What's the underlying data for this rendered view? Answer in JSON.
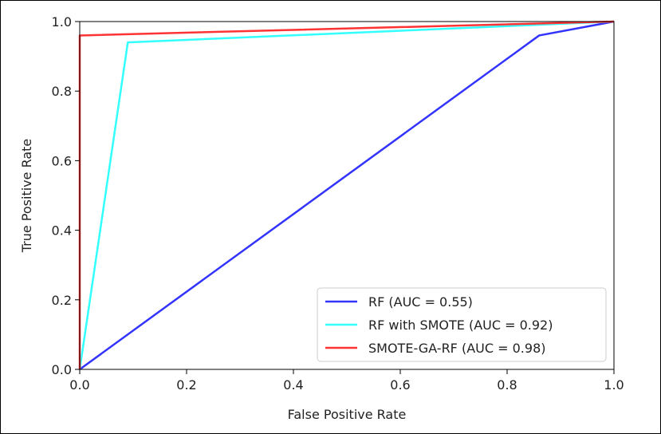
{
  "chart_data": {
    "type": "line",
    "title": "",
    "xlabel": "False Positive Rate",
    "ylabel": "True Positive Rate",
    "xlim": [
      0.0,
      1.0
    ],
    "ylim": [
      0.0,
      1.0
    ],
    "x_ticks": [
      "0.0",
      "0.2",
      "0.4",
      "0.6",
      "0.8",
      "1.0"
    ],
    "y_ticks": [
      "0.0",
      "0.2",
      "0.4",
      "0.6",
      "0.8",
      "1.0"
    ],
    "grid": false,
    "legend_position": "lower-right",
    "series": [
      {
        "name": "RF (AUC = 0.55)",
        "color": "#3333ff",
        "x": [
          0.0,
          0.86,
          1.0
        ],
        "y": [
          0.0,
          0.96,
          1.0
        ]
      },
      {
        "name": "RF with SMOTE (AUC = 0.92)",
        "color": "#33ffff",
        "x": [
          0.0,
          0.09,
          1.0
        ],
        "y": [
          0.0,
          0.94,
          1.0
        ]
      },
      {
        "name": "SMOTE-GA-RF (AUC = 0.98)",
        "color": "#ff3333",
        "x": [
          0.0,
          0.0,
          1.0
        ],
        "y": [
          0.0,
          0.96,
          1.0
        ]
      }
    ]
  }
}
